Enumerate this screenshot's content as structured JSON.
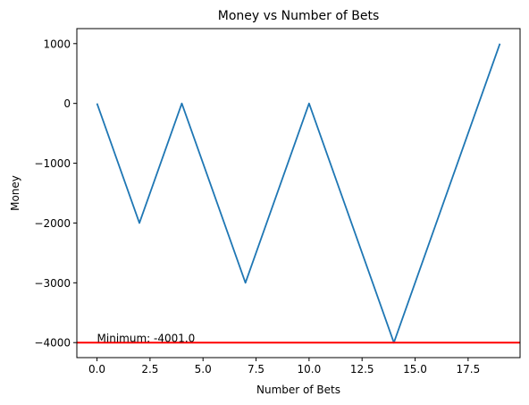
{
  "chart_data": {
    "type": "line",
    "title": "Money vs Number of Bets",
    "xlabel": "Number of Bets",
    "ylabel": "Money",
    "xlim": [
      -0.95,
      19.95
    ],
    "ylim": [
      -4251,
      1251
    ],
    "x_ticks": [
      0,
      2.5,
      5,
      7.5,
      10,
      12.5,
      15,
      17.5
    ],
    "x_tick_labels": [
      "0.0",
      "2.5",
      "5.0",
      "7.5",
      "10.0",
      "12.5",
      "15.0",
      "17.5"
    ],
    "y_ticks": [
      1000,
      0,
      -1000,
      -2000,
      -3000,
      -4000
    ],
    "y_tick_labels": [
      "1000",
      "0",
      "−1000",
      "−2000",
      "−3000",
      "−4000"
    ],
    "grid": false,
    "series": [
      {
        "color": "#1f77b4",
        "x": [
          0,
          1,
          2,
          3,
          4,
          5,
          6,
          7,
          8,
          9,
          10,
          11,
          12,
          13,
          14,
          15,
          16,
          17,
          18,
          19
        ],
        "y": [
          0,
          -1000,
          -2000,
          -1000,
          0,
          -1000,
          -2000,
          -3000,
          -2000,
          -1000,
          0,
          -1000,
          -2000,
          -3000,
          -4001,
          -3000,
          -2000,
          -1000,
          0,
          1000
        ]
      }
    ],
    "hline": {
      "y": -4001,
      "color": "#ff0000"
    },
    "annotation": {
      "text": "Minimum: -4001.0",
      "x": 0,
      "y": -4001
    }
  }
}
